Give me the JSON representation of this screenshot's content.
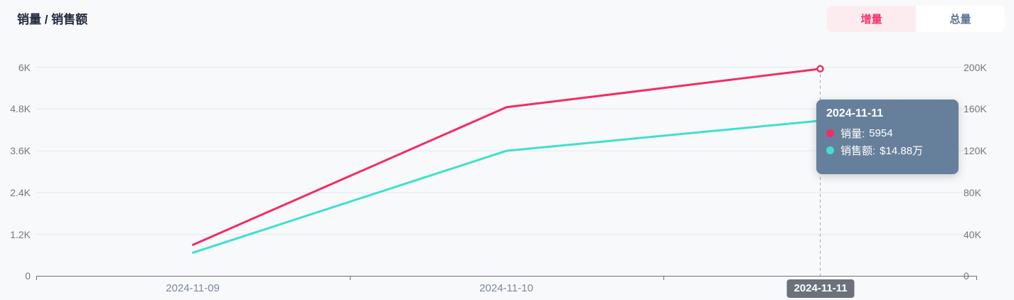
{
  "page": {
    "title": "销量 / 销售额"
  },
  "toggle": {
    "options": [
      {
        "label": "增量",
        "active": true
      },
      {
        "label": "总量",
        "active": false
      }
    ]
  },
  "colors": {
    "volume_line": "#f22d63",
    "amount_line": "#3fe0cd",
    "active_pill_bg": "#fdecef",
    "active_pill_text": "#f5356d",
    "inactive_pill_bg": "#ffffff",
    "inactive_pill_text": "#5b7496",
    "tooltip_bg": "#66809b",
    "pointer_label_bg": "#6c717c",
    "gridline": "#e3e8f2",
    "axis_line": "#6e7079"
  },
  "tooltip": {
    "title": "2024-11-11",
    "rows": [
      {
        "label": "销量:",
        "value": "5954"
      },
      {
        "label": "销售额:",
        "value": "$14.88万"
      }
    ]
  },
  "axis_pointer": {
    "label": "2024-11-11"
  },
  "chart_data": {
    "type": "line",
    "title": "销量 / 销售额",
    "categories": [
      "2024-11-09",
      "2024-11-10",
      "2024-11-11"
    ],
    "series": [
      {
        "name": "销量",
        "axis": "left",
        "color": "#f22d63",
        "values": [
          900,
          4850,
          5954
        ]
      },
      {
        "name": "销售额",
        "axis": "right",
        "color": "#3fe0cd",
        "values": [
          22500,
          120000,
          148800
        ]
      }
    ],
    "y_axis_left": {
      "max": 6000,
      "ticks": [
        "0",
        "1.2K",
        "2.4K",
        "3.6K",
        "4.8K",
        "6K"
      ]
    },
    "y_axis_right": {
      "max": 200000,
      "ticks": [
        "0",
        "40K",
        "80K",
        "120K",
        "160K",
        "200K"
      ]
    },
    "grid": true,
    "legend_position": "none",
    "highlighted_point": {
      "category": "2024-11-11",
      "销量": 5954,
      "销售额_display": "$14.88万"
    }
  }
}
